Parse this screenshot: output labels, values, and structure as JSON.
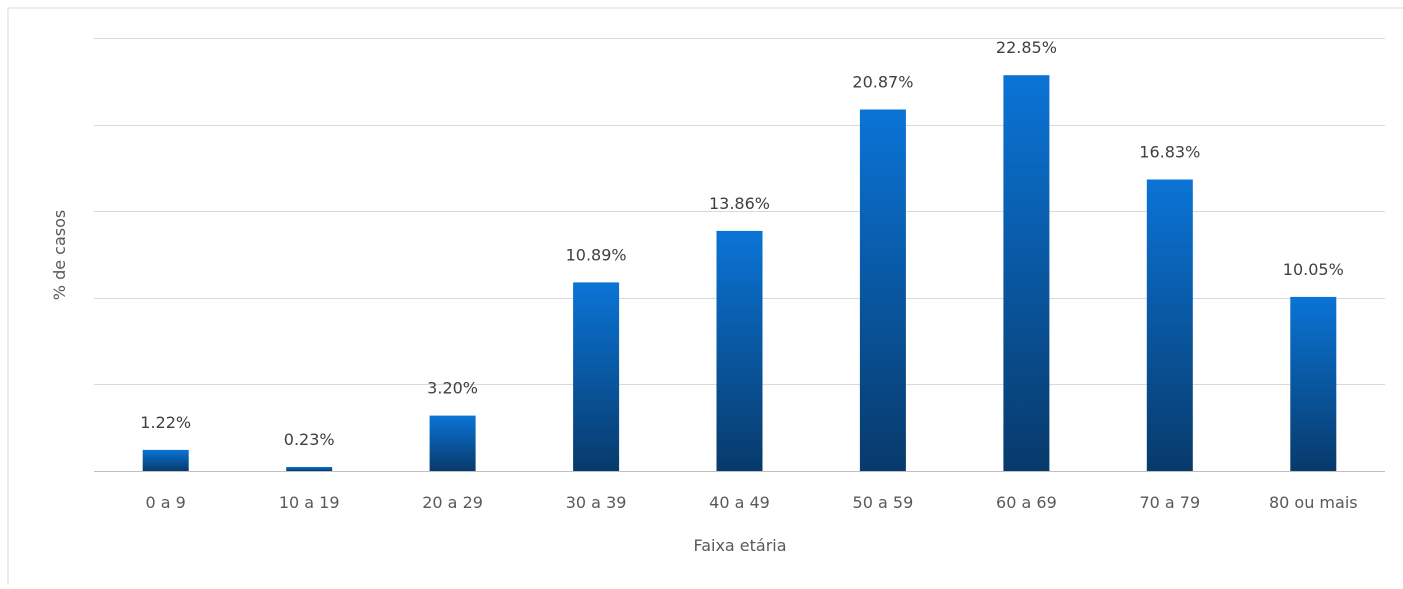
{
  "chart_data": {
    "type": "bar",
    "title": "",
    "xlabel": "Faixa etária",
    "ylabel": "% de casos",
    "categories": [
      "0 a 9",
      "10 a 19",
      "20 a 29",
      "30 a 39",
      "40 a 49",
      "50 a 59",
      "60 a 69",
      "70 a 79",
      "80 ou mais"
    ],
    "values": [
      1.22,
      0.23,
      3.2,
      10.89,
      13.86,
      20.87,
      22.85,
      16.83,
      10.05
    ],
    "data_labels": [
      "1.22%",
      "0.23%",
      "3.20%",
      "10.89%",
      "13.86%",
      "20.87%",
      "22.85%",
      "16.83%",
      "10.05%"
    ],
    "ylim": [
      0,
      25
    ],
    "ytick_step": 5,
    "grid": true,
    "legend": "none",
    "bar_color_top": "#0a74d6",
    "bar_color_bottom": "#083a6b"
  }
}
